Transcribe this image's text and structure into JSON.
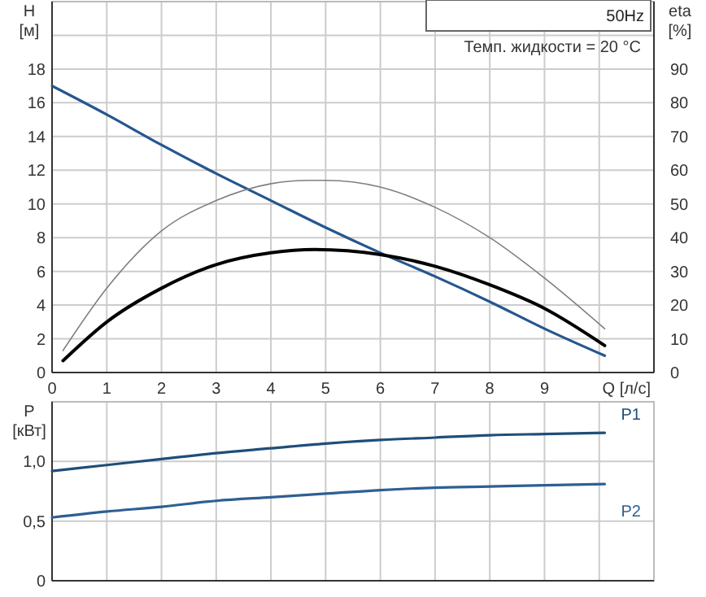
{
  "chart_data": [
    {
      "type": "line",
      "title": "50Hz",
      "annotations": [
        "Темп. жидкости = 20 °C"
      ],
      "xlabel": "Q [л/с]",
      "ylabel": "H [м]",
      "y2label": "eta [%]",
      "xlim": [
        0,
        11
      ],
      "xticks": [
        0,
        1,
        2,
        3,
        4,
        5,
        6,
        7,
        8,
        9,
        {
          "value": 10,
          "label": null
        }
      ],
      "ylim": [
        0,
        22
      ],
      "yticks": [
        0,
        2,
        4,
        6,
        8,
        10,
        12,
        14,
        16,
        18,
        {
          "value": 20,
          "label": null
        }
      ],
      "y2lim": [
        0,
        110
      ],
      "y2ticks": [
        0,
        10,
        20,
        30,
        40,
        50,
        60,
        70,
        80,
        90
      ],
      "grid": true,
      "series": [
        {
          "color": "#25568f",
          "x": [
            0,
            1,
            2,
            3,
            4,
            5,
            6,
            7,
            8,
            9,
            10.1
          ],
          "values": [
            17,
            15.3,
            13.5,
            11.8,
            10.2,
            8.6,
            7.1,
            5.7,
            4.2,
            2.6,
            1
          ]
        },
        {
          "color": "#7f7f7f",
          "axis": "y2",
          "x": [
            0.2,
            1,
            2,
            3,
            4,
            4.7,
            5,
            6,
            7,
            8,
            9,
            10.1
          ],
          "values": [
            6.5,
            25,
            42,
            51,
            56,
            57,
            57,
            55,
            49,
            40,
            28,
            13
          ]
        },
        {
          "color": "#000000",
          "axis": "y2",
          "x": [
            0.2,
            1,
            2,
            3,
            4,
            4.8,
            6,
            7,
            8,
            9,
            10.1
          ],
          "values": [
            3.5,
            15,
            25,
            32,
            35.5,
            36.5,
            35,
            31.5,
            26,
            19,
            8
          ]
        }
      ]
    },
    {
      "type": "line",
      "ylabel": "P [кВт]",
      "xlim": [
        0,
        11
      ],
      "xticks": [
        0,
        1,
        2,
        3,
        4,
        5,
        6,
        7,
        8,
        9,
        10
      ],
      "ylim": [
        0,
        1.5
      ],
      "yticks": [
        0,
        {
          "value": 0.5,
          "label": "0,5"
        },
        {
          "value": 1,
          "label": "1,0"
        },
        {
          "value": 1.5,
          "label": null
        }
      ],
      "grid": true,
      "tick_labels": "y",
      "series": [
        {
          "name": "P1",
          "color": "#1f4e79",
          "x": [
            0,
            1,
            2,
            3,
            4,
            5,
            6,
            7,
            8,
            9,
            10.1
          ],
          "values": [
            0.92,
            0.97,
            1.02,
            1.07,
            1.11,
            1.15,
            1.18,
            1.2,
            1.22,
            1.23,
            1.24
          ]
        },
        {
          "name": "P2",
          "color": "#2e5f94",
          "x": [
            0,
            1,
            2,
            3,
            4,
            5,
            6,
            7,
            8,
            9,
            10.1
          ],
          "values": [
            0.53,
            0.58,
            0.62,
            0.67,
            0.7,
            0.73,
            0.76,
            0.78,
            0.79,
            0.8,
            0.81
          ]
        }
      ]
    }
  ]
}
